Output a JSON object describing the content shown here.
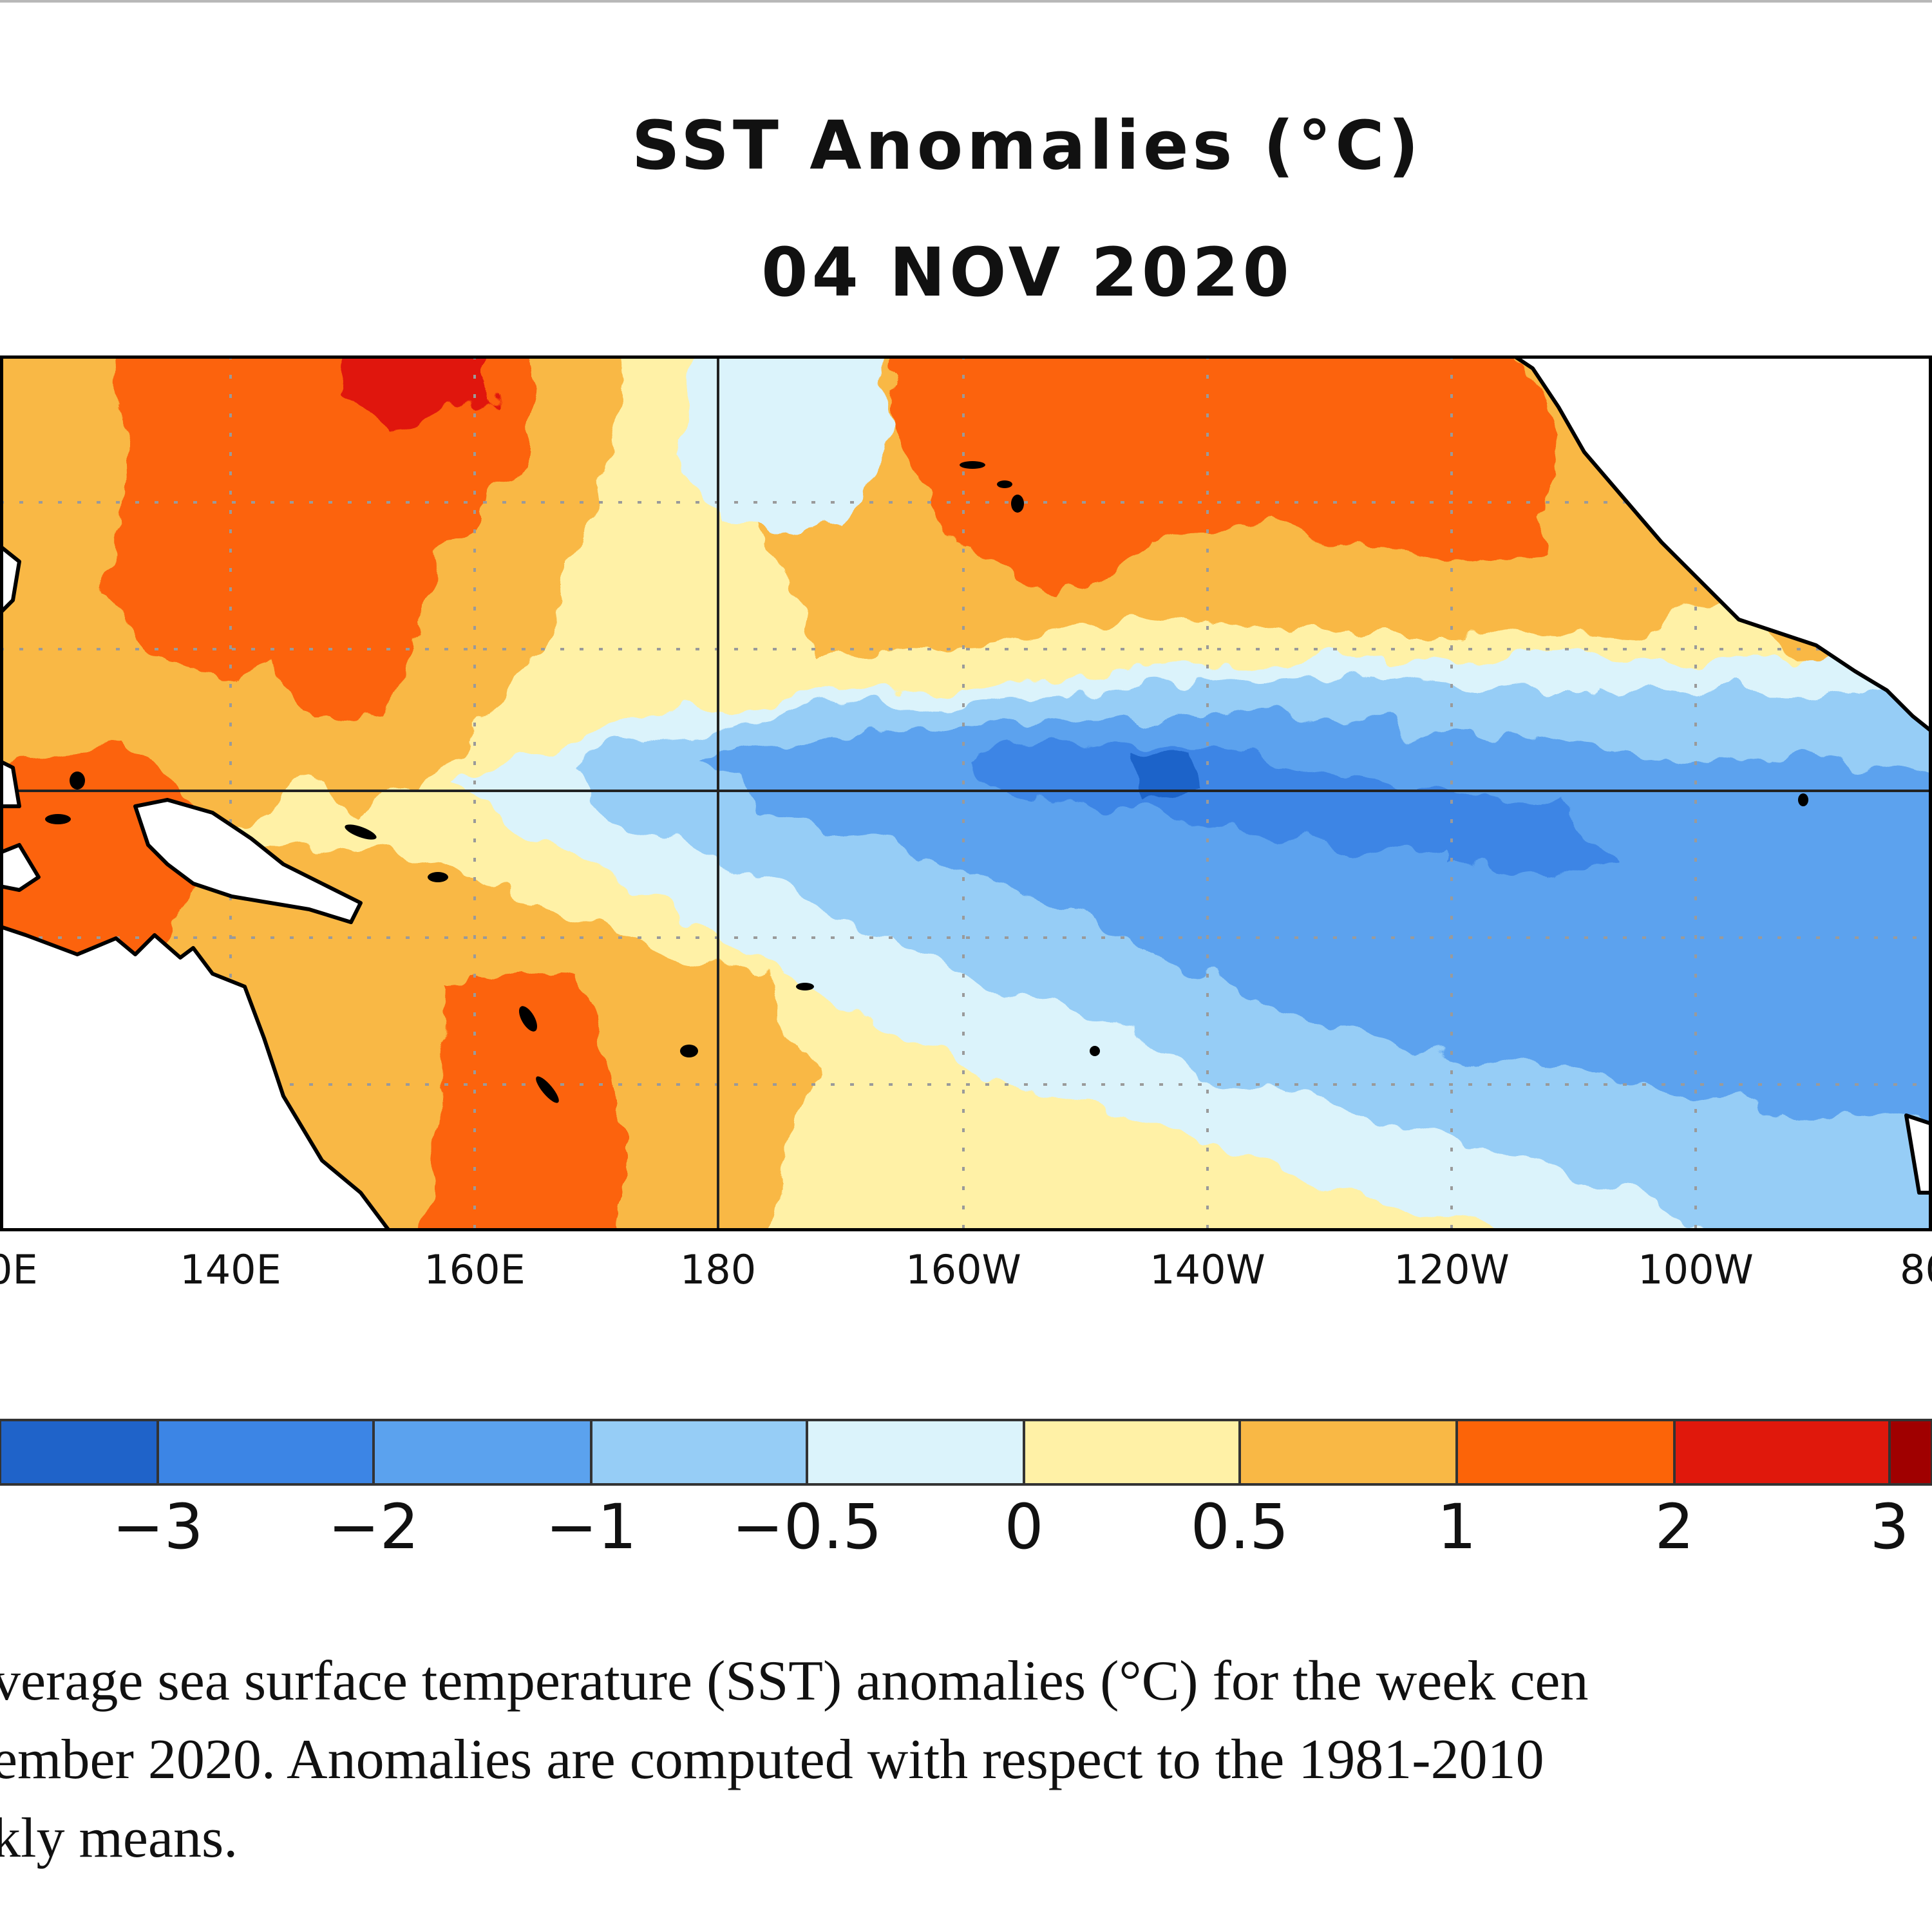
{
  "title": "SST Anomalies (°C)",
  "date": "04 NOV 2020",
  "longitude_labels": [
    "0E",
    "140E",
    "160E",
    "180",
    "160W",
    "140W",
    "120W",
    "100W",
    "80"
  ],
  "colorbar": {
    "labels": [
      "−3",
      "−2",
      "−1",
      "−0.5",
      "0",
      "0.5",
      "1",
      "2",
      "3"
    ],
    "colors": [
      "#1f63c9",
      "#3c85e5",
      "#5ba2ee",
      "#96cdf6",
      "#dbf3fb",
      "#fff1a6",
      "#f9b845",
      "#fc6408",
      "#e0180c",
      "#a00000"
    ]
  },
  "caption_lines": [
    "verage sea surface temperature (SST) anomalies  (°C) for the week cen",
    "ember 2020.  Anomalies  are computed  with respect to the 1981-2010",
    "kly means."
  ],
  "colors": {
    "land": "#ffffff",
    "coast": "#000000",
    "grid": "#9a9a9a"
  }
}
